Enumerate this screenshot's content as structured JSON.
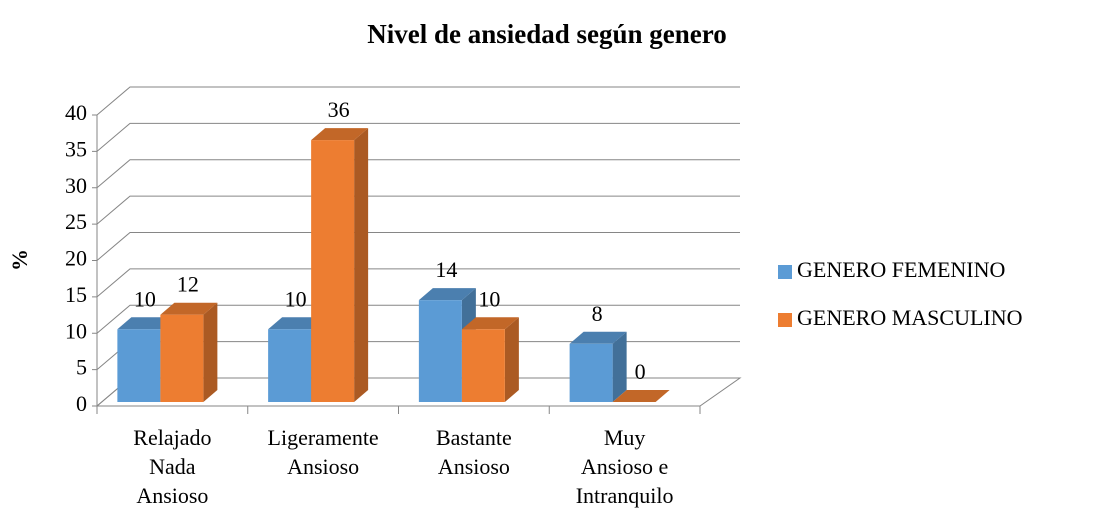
{
  "chart_data": {
    "type": "bar3d",
    "title": "Nivel de ansiedad según genero",
    "y_label": "%",
    "categories": [
      "Relajado Nada Ansioso",
      "Ligeramente Ansioso",
      "Bastante Ansioso",
      "Muy Ansioso e Intranquilo"
    ],
    "series": [
      {
        "name": "GENERO FEMENINO",
        "color": "#5b9bd5",
        "values": [
          10,
          10,
          14,
          8
        ]
      },
      {
        "name": "GENERO MASCULINO",
        "color": "#ed7d31",
        "values": [
          12,
          36,
          10,
          0
        ]
      }
    ],
    "ylim": [
      0,
      40
    ],
    "yticks": [
      0,
      5,
      10,
      15,
      20,
      25,
      30,
      35,
      40
    ],
    "grid": true,
    "legend": "right"
  }
}
